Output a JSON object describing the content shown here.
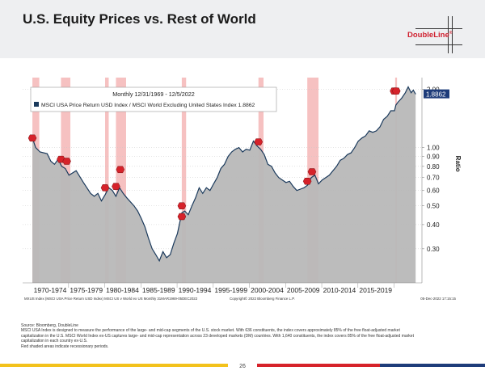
{
  "header": {
    "title": "U.S. Equity Prices vs. Rest of World",
    "logo_text": "DoubleLine",
    "logo_mark": "®"
  },
  "chart_data": {
    "type": "line",
    "legend_title": "Monthly 12/31/1969 - 12/5/2022",
    "series": [
      {
        "name": "MSCI USA Price Return USD Index / MSCI World Excluding United States Index",
        "last_value": "1.8862",
        "points": [
          [
            1969.95,
            1.12
          ],
          [
            1970.4,
            1.0
          ],
          [
            1971.0,
            0.95
          ],
          [
            1972.0,
            0.93
          ],
          [
            1972.5,
            0.85
          ],
          [
            1973.0,
            0.82
          ],
          [
            1973.5,
            0.87
          ],
          [
            1974.0,
            0.8
          ],
          [
            1974.5,
            0.78
          ],
          [
            1975.0,
            0.72
          ],
          [
            1976.0,
            0.76
          ],
          [
            1977.0,
            0.66
          ],
          [
            1978.0,
            0.58
          ],
          [
            1978.5,
            0.56
          ],
          [
            1979.0,
            0.58
          ],
          [
            1979.5,
            0.53
          ],
          [
            1980.0,
            0.57
          ],
          [
            1980.5,
            0.62
          ],
          [
            1981.0,
            0.6
          ],
          [
            1981.5,
            0.56
          ],
          [
            1982.0,
            0.62
          ],
          [
            1982.5,
            0.58
          ],
          [
            1983.0,
            0.55
          ],
          [
            1984.0,
            0.5
          ],
          [
            1984.5,
            0.47
          ],
          [
            1985.0,
            0.43
          ],
          [
            1985.5,
            0.39
          ],
          [
            1986.0,
            0.34
          ],
          [
            1986.5,
            0.3
          ],
          [
            1987.0,
            0.28
          ],
          [
            1987.5,
            0.26
          ],
          [
            1988.0,
            0.29
          ],
          [
            1988.5,
            0.27
          ],
          [
            1989.0,
            0.28
          ],
          [
            1989.5,
            0.32
          ],
          [
            1990.0,
            0.36
          ],
          [
            1990.6,
            0.46
          ],
          [
            1991.0,
            0.47
          ],
          [
            1991.5,
            0.45
          ],
          [
            1992.0,
            0.5
          ],
          [
            1992.5,
            0.55
          ],
          [
            1993.0,
            0.62
          ],
          [
            1993.5,
            0.58
          ],
          [
            1994.0,
            0.62
          ],
          [
            1994.5,
            0.6
          ],
          [
            1995.0,
            0.65
          ],
          [
            1995.5,
            0.7
          ],
          [
            1996.0,
            0.78
          ],
          [
            1996.5,
            0.82
          ],
          [
            1997.0,
            0.9
          ],
          [
            1997.5,
            0.95
          ],
          [
            1998.0,
            0.98
          ],
          [
            1998.5,
            1.0
          ],
          [
            1999.0,
            0.95
          ],
          [
            1999.5,
            0.98
          ],
          [
            2000.0,
            0.97
          ],
          [
            2000.5,
            1.08
          ],
          [
            2001.0,
            1.02
          ],
          [
            2001.5,
            0.98
          ],
          [
            2002.0,
            0.92
          ],
          [
            2002.5,
            0.82
          ],
          [
            2003.0,
            0.8
          ],
          [
            2003.5,
            0.74
          ],
          [
            2004.0,
            0.7
          ],
          [
            2004.5,
            0.68
          ],
          [
            2005.0,
            0.66
          ],
          [
            2005.5,
            0.67
          ],
          [
            2006.0,
            0.63
          ],
          [
            2006.5,
            0.6
          ],
          [
            2007.0,
            0.61
          ],
          [
            2007.5,
            0.62
          ],
          [
            2008.0,
            0.64
          ],
          [
            2008.5,
            0.7
          ],
          [
            2009.0,
            0.72
          ],
          [
            2009.5,
            0.65
          ],
          [
            2010.0,
            0.68
          ],
          [
            2010.5,
            0.7
          ],
          [
            2011.0,
            0.72
          ],
          [
            2011.5,
            0.76
          ],
          [
            2012.0,
            0.8
          ],
          [
            2012.5,
            0.86
          ],
          [
            2013.0,
            0.88
          ],
          [
            2013.5,
            0.92
          ],
          [
            2014.0,
            0.94
          ],
          [
            2014.5,
            1.0
          ],
          [
            2015.0,
            1.08
          ],
          [
            2015.5,
            1.12
          ],
          [
            2016.0,
            1.15
          ],
          [
            2016.5,
            1.22
          ],
          [
            2017.0,
            1.2
          ],
          [
            2017.5,
            1.22
          ],
          [
            2018.0,
            1.28
          ],
          [
            2018.5,
            1.4
          ],
          [
            2019.0,
            1.45
          ],
          [
            2019.5,
            1.55
          ],
          [
            2020.0,
            1.55
          ],
          [
            2020.2,
            1.66
          ],
          [
            2020.5,
            1.72
          ],
          [
            2021.0,
            1.8
          ],
          [
            2021.5,
            1.92
          ],
          [
            2021.9,
            2.06
          ],
          [
            2022.3,
            1.92
          ],
          [
            2022.6,
            1.98
          ],
          [
            2022.93,
            1.8862
          ]
        ]
      }
    ],
    "recessions": [
      [
        1969.95,
        1970.9
      ],
      [
        1973.9,
        1975.2
      ],
      [
        1980.0,
        1980.5
      ],
      [
        1981.5,
        1982.9
      ],
      [
        1990.6,
        1991.2
      ],
      [
        2001.2,
        2001.9
      ],
      [
        2007.95,
        2009.5
      ],
      [
        2020.1,
        2020.35
      ]
    ],
    "markers": [
      [
        1969.95,
        1.12
      ],
      [
        1973.9,
        0.87
      ],
      [
        1974.7,
        0.85
      ],
      [
        1980.0,
        0.62
      ],
      [
        1981.5,
        0.63
      ],
      [
        1982.1,
        0.77
      ],
      [
        1990.6,
        0.5
      ],
      [
        1990.6,
        0.44
      ],
      [
        2001.2,
        1.07
      ],
      [
        2007.95,
        0.67
      ],
      [
        2008.6,
        0.75
      ],
      [
        2019.95,
        1.96
      ],
      [
        2020.25,
        1.96
      ]
    ],
    "x_range": [
      1968.6,
      2023.8
    ],
    "y_range": [
      0.2,
      2.3
    ],
    "y_scale": "log",
    "y_label": "Ratio",
    "y_ticks": [
      {
        "value": 2.0,
        "label": "2.00"
      },
      {
        "value": 1.0,
        "label": "1.00"
      },
      {
        "value": 0.9,
        "label": "0.90"
      },
      {
        "value": 0.8,
        "label": "0.80"
      },
      {
        "value": 0.7,
        "label": "0.70"
      },
      {
        "value": 0.6,
        "label": "0.60"
      },
      {
        "value": 0.5,
        "label": "0.50"
      },
      {
        "value": 0.4,
        "label": "0.40"
      },
      {
        "value": 0.3,
        "label": "0.30"
      }
    ],
    "x_ticks": [
      {
        "center": 1972.4,
        "label": "1970-1974"
      },
      {
        "center": 1977.4,
        "label": "1975-1979"
      },
      {
        "center": 1982.4,
        "label": "1980-1984"
      },
      {
        "center": 1987.4,
        "label": "1985-1989"
      },
      {
        "center": 1992.4,
        "label": "1990-1994"
      },
      {
        "center": 1997.4,
        "label": "1995-1999"
      },
      {
        "center": 2002.4,
        "label": "2000-2004"
      },
      {
        "center": 2007.4,
        "label": "2005-2009"
      },
      {
        "center": 2012.4,
        "label": "2010-2014"
      },
      {
        "center": 2017.4,
        "label": "2015-2019"
      }
    ],
    "bottom_left_note": "MXUS Index (MSCI USA Price Return USD Index) MSCI US v World ex US  Monthly 31MAR1969-05DEC2022",
    "copyright": "Copyright© 2022 Bloomberg Finance L.P.",
    "timestamp": "05-Dec-2022  17:15:15",
    "colors": {
      "line": "#1b3a5c",
      "fill": "#b8b8b8",
      "recession": "#f4b6b6",
      "marker": "#d6222a",
      "last_value_bg": "#1e3c7a"
    }
  },
  "notes": {
    "source": "Source: Bloomberg, DoubleLine",
    "line1": "MSCI USA Index is designed to measure the performance of the large- and mid-cap segments of the U.S. stock market. With 636 constituents, the index covers approximately 85% of the free float-adjusted market",
    "line2": "capitalization in the U.S. MSCI World Index ex-US captures large- and mid-cap representation across 23 developed markets (DM) countries. With 1,640 constituents, the index covers 85% of the free float-adjusted market",
    "line3": "capitalization in each country ex-U.S.",
    "line4": "Red shaded areas indicate recessionary periods."
  },
  "page_number": "26",
  "footer_colors": [
    "#f3c21b",
    "#ffffff",
    "#d6222a",
    "#ffffff",
    "#1e3c7a"
  ]
}
